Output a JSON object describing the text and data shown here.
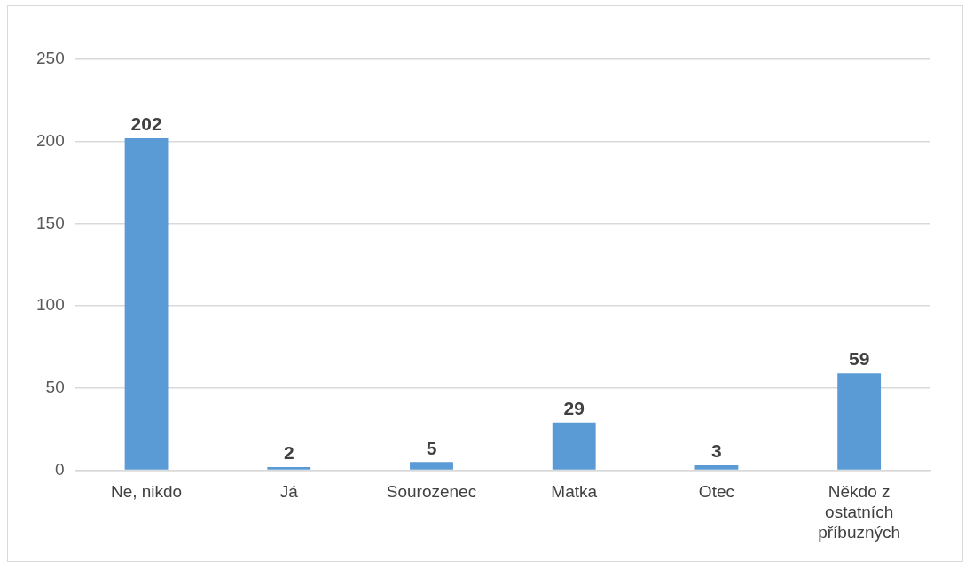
{
  "chart_data": {
    "type": "bar",
    "categories": [
      "Ne, nikdo",
      "Já",
      "Sourozenec",
      "Matka",
      "Otec",
      "Někdo z ostatních příbuzných"
    ],
    "values": [
      202,
      2,
      5,
      29,
      3,
      59
    ],
    "color": "#5b9bd5",
    "ylim": [
      0,
      250
    ],
    "yticks": [
      0,
      50,
      100,
      150,
      200,
      250
    ],
    "grid": "y",
    "legend": false,
    "data_labels": true
  }
}
